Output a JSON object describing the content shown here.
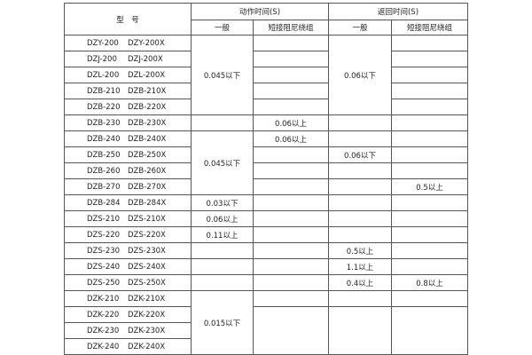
{
  "header": {
    "model": "型　号",
    "action_time": "动作时间(S)",
    "return_time": "返回时间(S)",
    "general": "一般",
    "short_damping": "短接阻尼绕组"
  },
  "rows": [
    {
      "model": [
        "DZY-200",
        "DZY-200X"
      ]
    },
    {
      "model": [
        "DZJ-200",
        "DZJ-200X"
      ]
    },
    {
      "model": [
        "DZL-200",
        "DZL-200X"
      ]
    },
    {
      "model": [
        "DZB-210",
        "DZB-210X"
      ]
    },
    {
      "model": [
        "DZB-220",
        "DZB-220X"
      ]
    },
    {
      "model": [
        "DZB-230",
        "DZB-230X"
      ]
    },
    {
      "model": [
        "DZB-240",
        "DZB-240X"
      ]
    },
    {
      "model": [
        "DZB-250",
        "DZB-250X"
      ]
    },
    {
      "model": [
        "DZB-260",
        "DZB-260X"
      ]
    },
    {
      "model": [
        "DZB-270",
        "DZB-270X"
      ]
    },
    {
      "model": [
        "DZB-284",
        "DZB-284X"
      ]
    },
    {
      "model": [
        "DZS-210",
        "DZS-210X"
      ]
    },
    {
      "model": [
        "DZS-220",
        "DZS-220X"
      ]
    },
    {
      "model": [
        "DZS-230",
        "DZS-230X"
      ]
    },
    {
      "model": [
        "DZS-240",
        "DZS-240X"
      ]
    },
    {
      "model": [
        "DZS-250",
        "DZS-250X"
      ]
    },
    {
      "model": [
        "DZK-210",
        "DZK-210X"
      ]
    },
    {
      "model": [
        "DZK-220",
        "DZK-220X"
      ]
    },
    {
      "model": [
        "DZK-230",
        "DZK-230X"
      ]
    },
    {
      "model": [
        "DZK-240",
        "DZK-240X"
      ]
    }
  ],
  "cells": [
    {
      "row": 0,
      "col": 1,
      "span": 5,
      "text": "0.045以下"
    },
    {
      "row": 5,
      "col": 1,
      "span": 1,
      "text": ""
    },
    {
      "row": 6,
      "col": 1,
      "span": 4,
      "text": "0.045以下"
    },
    {
      "row": 10,
      "col": 1,
      "span": 1,
      "text": "0.03以下"
    },
    {
      "row": 11,
      "col": 1,
      "span": 1,
      "text": "0.06以上"
    },
    {
      "row": 12,
      "col": 1,
      "span": 1,
      "text": "0.11以上"
    },
    {
      "row": 13,
      "col": 1,
      "span": 1,
      "text": ""
    },
    {
      "row": 14,
      "col": 1,
      "span": 1,
      "text": ""
    },
    {
      "row": 15,
      "col": 1,
      "span": 1,
      "text": ""
    },
    {
      "row": 16,
      "col": 1,
      "span": 4,
      "text": "0.015以下"
    },
    {
      "row": 5,
      "col": 2,
      "span": 1,
      "text": "0.06以上"
    },
    {
      "row": 6,
      "col": 2,
      "span": 1,
      "text": "0.06以上"
    },
    {
      "row": 17,
      "col": 2,
      "span": 3,
      "text": ""
    },
    {
      "row": 0,
      "col": 3,
      "span": 5,
      "text": "0.06以下"
    },
    {
      "row": 7,
      "col": 3,
      "span": 1,
      "text": "0.06以下"
    },
    {
      "row": 13,
      "col": 3,
      "span": 1,
      "text": "0.5以上"
    },
    {
      "row": 14,
      "col": 3,
      "span": 1,
      "text": "1.1以上"
    },
    {
      "row": 15,
      "col": 3,
      "span": 1,
      "text": "0.4以上"
    },
    {
      "row": 17,
      "col": 3,
      "span": 3,
      "text": ""
    },
    {
      "row": 9,
      "col": 4,
      "span": 1,
      "text": "0.5以上"
    },
    {
      "row": 15,
      "col": 4,
      "span": 1,
      "text": "0.8以上"
    },
    {
      "row": 17,
      "col": 4,
      "span": 3,
      "text": ""
    }
  ]
}
